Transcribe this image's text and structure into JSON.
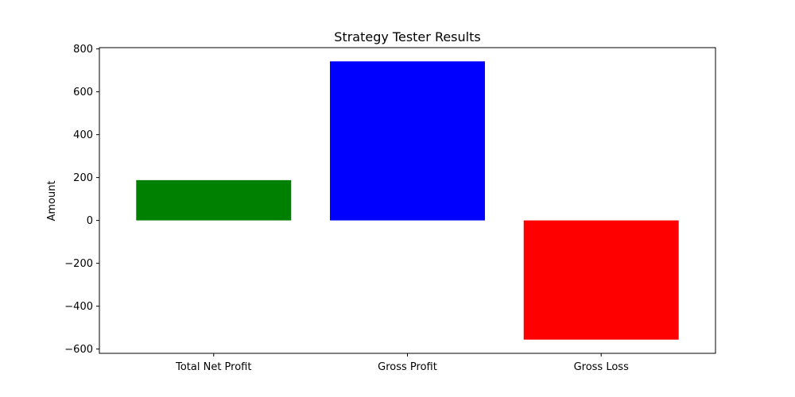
{
  "chart_data": {
    "type": "bar",
    "title": "Strategy Tester Results",
    "xlabel": "",
    "ylabel": "Amount",
    "categories": [
      "Total Net Profit",
      "Gross Profit",
      "Gross Loss"
    ],
    "values": [
      188,
      742,
      -556
    ],
    "colors": [
      "#008000",
      "#0000ff",
      "#ff0000"
    ],
    "ylim": [
      -620,
      806
    ],
    "yticks": [
      -600,
      -400,
      -200,
      0,
      200,
      400,
      600,
      800
    ],
    "ytick_labels": [
      "−600",
      "−400",
      "−200",
      "0",
      "200",
      "400",
      "600",
      "800"
    ],
    "grid": false,
    "legend": "none"
  }
}
